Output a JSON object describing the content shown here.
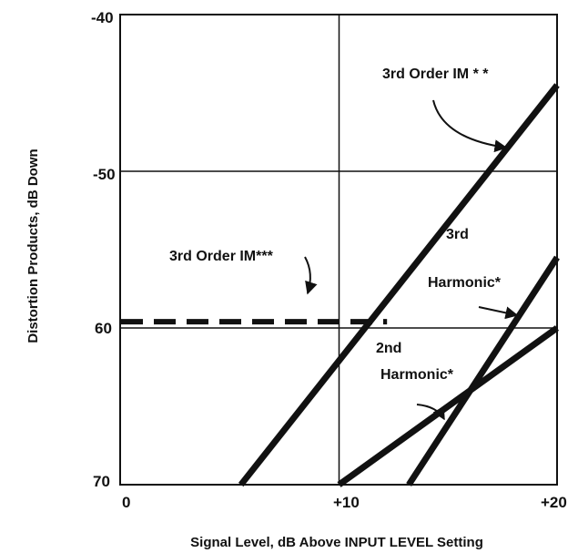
{
  "chart_data": {
    "type": "line",
    "title": "",
    "xlabel": "Signal Level, dB Above INPUT LEVEL Setting",
    "ylabel": "Distortion Products, dB Down",
    "xlim": [
      0,
      20
    ],
    "ylim": [
      -70,
      -40
    ],
    "x_tick_labels": [
      "0",
      "+10",
      "+20"
    ],
    "y_tick_labels": [
      "-40",
      "-50",
      "60",
      "70"
    ],
    "y_tick_values": [
      -40,
      -50,
      -60,
      -70
    ],
    "x_tick_values": [
      0,
      10,
      20
    ],
    "grid": true,
    "series": [
      {
        "name": "3rd Order IM**",
        "style": "solid",
        "x": [
          5.5,
          20
        ],
        "y": [
          -70,
          -44.5
        ]
      },
      {
        "name": "3rd Order IM***",
        "style": "dashed",
        "x": [
          0,
          12.2
        ],
        "y": [
          -59.6,
          -59.6
        ]
      },
      {
        "name": "3rd Harmonic*",
        "style": "solid",
        "x": [
          13.2,
          20
        ],
        "y": [
          -70,
          -55.5
        ]
      },
      {
        "name": "2nd Harmonic*",
        "style": "solid",
        "x": [
          10,
          20
        ],
        "y": [
          -70,
          -60
        ]
      }
    ],
    "annotations": [
      {
        "lines": [
          "3rd Order IM * *"
        ]
      },
      {
        "lines": [
          "3rd Order IM***"
        ]
      },
      {
        "lines": [
          "3rd",
          "Harmonic*"
        ]
      },
      {
        "lines": [
          "2nd",
          "Harmonic*"
        ]
      }
    ]
  }
}
